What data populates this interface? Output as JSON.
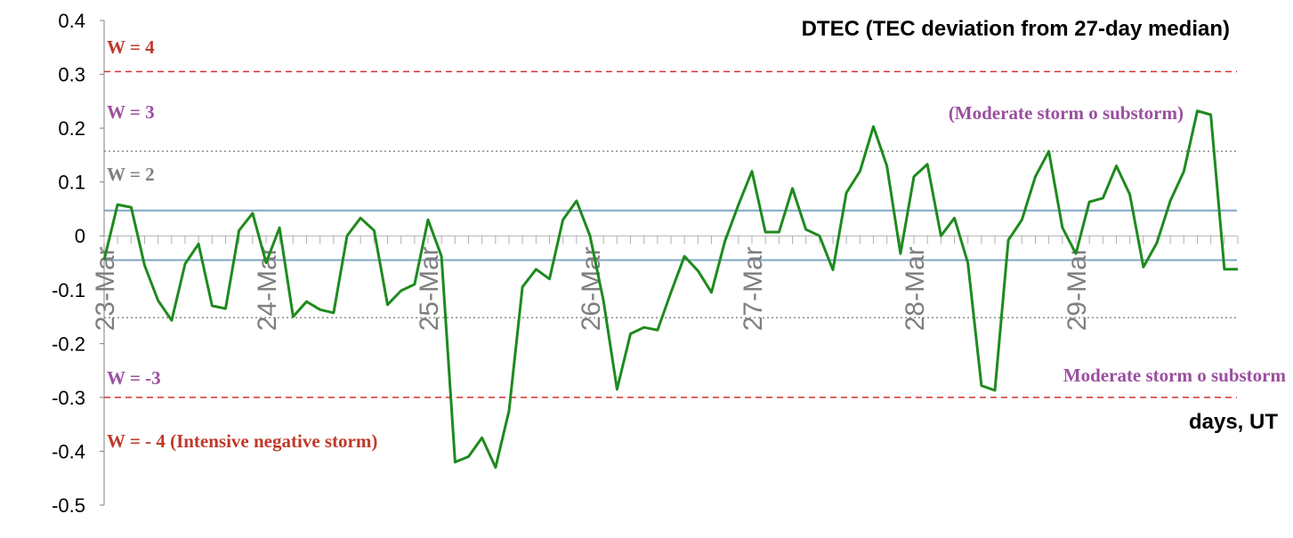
{
  "chart_data": {
    "type": "line",
    "title": "DTEC (TEC deviation from 27-day median)",
    "xlabel": "days, UT",
    "ylabel": "",
    "ylim": [
      -0.5,
      0.4
    ],
    "yticks": [
      "0.4",
      "0.3",
      "0.2",
      "0.1",
      "0",
      "-0.1",
      "-0.2",
      "-0.3",
      "-0.4",
      "-0.5"
    ],
    "categories": [
      "23-Mar",
      "24-Mar",
      "25-Mar",
      "26-Mar",
      "27-Mar",
      "28-Mar",
      "29-Mar"
    ],
    "x_range_days": [
      0,
      7.0
    ],
    "grid": false,
    "colors": {
      "series": "#1e8a1e",
      "red_line": "#d62f2f",
      "purple_text": "#9b4fa0",
      "gray_text": "#7f7f7f",
      "blue_line": "#7fa6c2",
      "red_text": "#c0392b"
    },
    "series": [
      {
        "x": [
          0.0,
          0.083,
          0.167,
          0.25,
          0.333,
          0.417,
          0.5,
          0.583,
          0.667,
          0.75,
          0.833,
          0.917,
          1.0,
          1.083,
          1.167,
          1.25,
          1.333,
          1.417,
          1.5,
          1.583,
          1.667,
          1.75,
          1.833,
          1.917,
          2.0,
          2.083,
          2.167,
          2.25,
          2.333,
          2.417,
          2.5,
          2.583,
          2.667,
          2.75,
          2.833,
          2.917,
          3.0,
          3.083,
          3.167,
          3.25,
          3.333,
          3.417,
          3.5,
          3.583,
          3.667,
          3.75,
          3.833,
          3.917,
          4.0,
          4.083,
          4.167,
          4.25,
          4.333,
          4.417,
          4.5,
          4.583,
          4.667,
          4.75,
          4.833,
          4.917,
          5.0,
          5.083,
          5.167,
          5.25,
          5.333,
          5.417,
          5.5,
          5.583,
          5.667,
          5.75,
          5.833,
          5.917,
          6.0,
          6.083,
          6.167,
          6.25,
          6.333,
          6.417,
          6.5,
          6.583,
          6.667,
          6.75,
          6.833,
          6.917,
          7.0
        ],
        "y": [
          -0.045,
          0.058,
          0.053,
          -0.055,
          -0.12,
          -0.157,
          -0.052,
          -0.015,
          -0.13,
          -0.135,
          0.01,
          0.042,
          -0.05,
          0.015,
          -0.15,
          -0.122,
          -0.137,
          -0.143,
          0.0,
          0.033,
          0.01,
          -0.128,
          -0.102,
          -0.09,
          0.03,
          -0.038,
          -0.42,
          -0.41,
          -0.375,
          -0.43,
          -0.325,
          -0.095,
          -0.062,
          -0.08,
          0.03,
          0.065,
          0.0,
          -0.12,
          -0.285,
          -0.182,
          -0.17,
          -0.175,
          -0.105,
          -0.038,
          -0.065,
          -0.105,
          -0.01,
          0.058,
          0.12,
          0.007,
          0.007,
          0.088,
          0.012,
          0.0,
          -0.063,
          0.08,
          0.12,
          0.203,
          0.13,
          -0.033,
          0.11,
          0.133,
          0.0,
          0.033,
          -0.05,
          -0.278,
          -0.287,
          -0.008,
          0.03,
          0.11,
          0.157,
          0.015,
          -0.033,
          0.063,
          0.07,
          0.13,
          0.077,
          -0.058,
          -0.013,
          0.065,
          0.12,
          0.232,
          0.225,
          -0.062,
          -0.062
        ]
      }
    ],
    "reference_lines": [
      {
        "y": 0.305,
        "style": "dashed",
        "color": "#d62f2f"
      },
      {
        "y": 0.157,
        "style": "dotted",
        "color": "#8c8c8c"
      },
      {
        "y": 0.047,
        "style": "solid",
        "color": "#7fa6c2"
      },
      {
        "y": -0.045,
        "style": "solid",
        "color": "#7fa6c2"
      },
      {
        "y": -0.152,
        "style": "dotted",
        "color": "#8c8c8c"
      },
      {
        "y": -0.3,
        "style": "dashed",
        "color": "#d62f2f"
      }
    ],
    "annotations": [
      {
        "text": "W = 4",
        "color": "#c0392b"
      },
      {
        "text": "W = 3",
        "color": "#9b4fa0"
      },
      {
        "text": "W = 2",
        "color": "#7f7f7f"
      },
      {
        "text": "(Moderate storm o substorm)",
        "color": "#9b4fa0"
      },
      {
        "text": "W = -3",
        "color": "#9b4fa0"
      },
      {
        "text": "Moderate storm o substorm",
        "color": "#9b4fa0"
      },
      {
        "text": "W = - 4 (Intensive negative storm)",
        "color": "#c0392b"
      }
    ]
  }
}
